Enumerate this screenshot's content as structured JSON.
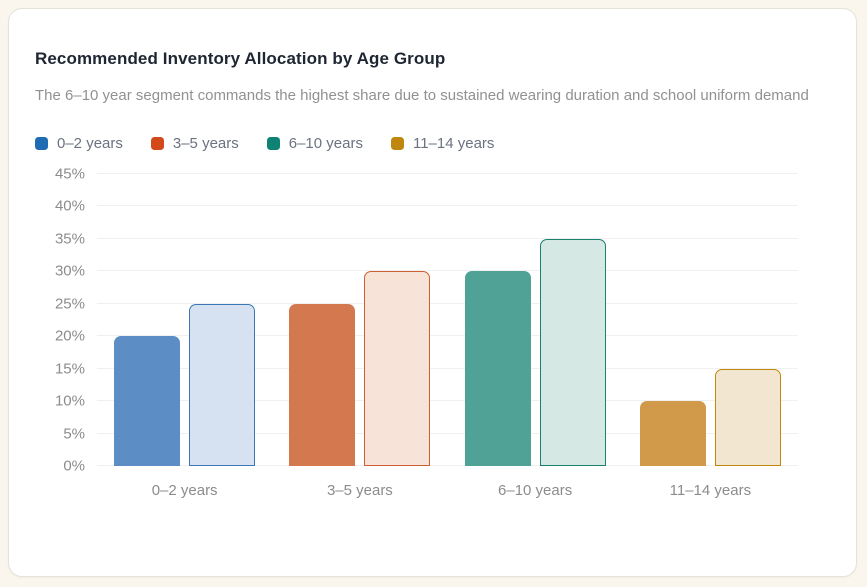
{
  "page": {
    "background_color": "#FAF6EE",
    "card_background": "#FFFFFF",
    "card_border_color": "#E6E2D9"
  },
  "card": {
    "title": "Recommended Inventory Allocation by Age Group",
    "subtitle": "The 6–10 year segment commands the highest share due to sustained wearing duration and school uniform demand"
  },
  "chart_data": {
    "type": "bar",
    "title": "Recommended Inventory Allocation by Age Group",
    "categories": [
      "0–2 years",
      "3–5 years",
      "6–10 years",
      "11–14 years"
    ],
    "series": [
      {
        "name": "solid-fill",
        "values": [
          20,
          25,
          30,
          10
        ]
      },
      {
        "name": "light-outlined",
        "values": [
          25,
          30,
          35,
          15
        ]
      }
    ],
    "xlabel": "",
    "ylabel": "",
    "ylim": [
      0,
      45
    ],
    "y_tick_step": 5,
    "y_tick_labels": [
      "0%",
      "5%",
      "10%",
      "15%",
      "20%",
      "25%",
      "30%",
      "35%",
      "40%",
      "45%"
    ],
    "grid": "horizontal-only",
    "gridline_color": "#F0F0F0",
    "axis_label_color": "#8C8C8C",
    "legend_position": "top-left",
    "legend": [
      {
        "label": "0–2 years",
        "swatch_color": "#1F6CB5"
      },
      {
        "label": "3–5 years",
        "swatch_color": "#D2491B"
      },
      {
        "label": "6–10 years",
        "swatch_color": "#0E8273"
      },
      {
        "label": "11–14 years",
        "swatch_color": "#C0870E"
      }
    ],
    "group_colors": [
      {
        "solid": "#5C8EC5",
        "light_fill": "#D6E2F1",
        "outline": "#3C76B6"
      },
      {
        "solid": "#D47850",
        "light_fill": "#F8E3D8",
        "outline": "#CE5F31"
      },
      {
        "solid": "#4FA295",
        "light_fill": "#D6E8E3",
        "outline": "#18826F"
      },
      {
        "solid": "#D19A4B",
        "light_fill": "#F3E6D0",
        "outline": "#C2880F"
      }
    ]
  }
}
